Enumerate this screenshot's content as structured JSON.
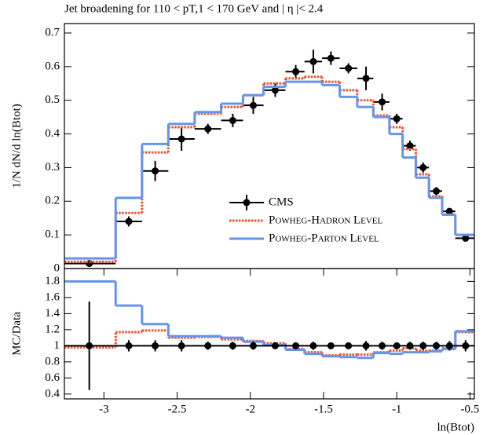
{
  "chart_data": [
    {
      "type": "step",
      "title": "Jet broadening for 110 < pT,1 < 170 GeV and | η |< 2.4",
      "y_label": "1/N dN/d ln(Btot)",
      "bin_edges": [
        -3.27,
        -2.92,
        -2.74,
        -2.56,
        -2.38,
        -2.2,
        -2.05,
        -1.91,
        -1.76,
        -1.63,
        -1.51,
        -1.39,
        -1.27,
        -1.16,
        -1.05,
        -0.96,
        -0.87,
        -0.78,
        -0.69,
        -0.6,
        -0.47
      ],
      "series": [
        {
          "name": "CMS",
          "style": "points",
          "color": "#000000",
          "x": [
            -3.1,
            -2.83,
            -2.65,
            -2.47,
            -2.29,
            -2.12,
            -1.98,
            -1.83,
            -1.69,
            -1.57,
            -1.45,
            -1.33,
            -1.21,
            -1.1,
            -1.0,
            -0.91,
            -0.82,
            -0.73,
            -0.64,
            -0.53
          ],
          "values": [
            0.015,
            0.14,
            0.29,
            0.385,
            0.415,
            0.44,
            0.485,
            0.53,
            0.585,
            0.615,
            0.625,
            0.595,
            0.565,
            0.495,
            0.445,
            0.365,
            0.3,
            0.23,
            0.17,
            0.09
          ],
          "errors": [
            0.01,
            0.015,
            0.03,
            0.035,
            0.015,
            0.02,
            0.025,
            0.02,
            0.02,
            0.035,
            0.02,
            0.015,
            0.035,
            0.025,
            0.015,
            0.015,
            0.015,
            0.012,
            0.01,
            0.008
          ]
        },
        {
          "name": "Powheg-Hadron Level",
          "style": "dotted",
          "color": "#e8512f",
          "values": [
            0.02,
            0.165,
            0.345,
            0.42,
            0.46,
            0.48,
            0.515,
            0.55,
            0.565,
            0.57,
            0.555,
            0.53,
            0.5,
            0.455,
            0.42,
            0.355,
            0.28,
            0.215,
            0.16,
            0.1
          ]
        },
        {
          "name": "Powheg-Parton Level",
          "style": "solid",
          "color": "#6495ed",
          "values": [
            0.03,
            0.21,
            0.37,
            0.43,
            0.465,
            0.49,
            0.515,
            0.54,
            0.555,
            0.555,
            0.545,
            0.51,
            0.48,
            0.45,
            0.4,
            0.33,
            0.27,
            0.21,
            0.16,
            0.1
          ]
        }
      ],
      "xlim": [
        -3.27,
        -0.47
      ],
      "ylim": [
        0,
        0.728
      ],
      "yticks": [
        0,
        0.1,
        0.2,
        0.3,
        0.4,
        0.5,
        0.6,
        0.7
      ]
    },
    {
      "type": "step",
      "y_label": "MC/Data",
      "x_label": "ln(Btot)",
      "bin_edges": [
        -3.27,
        -2.92,
        -2.74,
        -2.56,
        -2.38,
        -2.2,
        -2.05,
        -1.91,
        -1.76,
        -1.63,
        -1.51,
        -1.39,
        -1.27,
        -1.16,
        -1.05,
        -0.96,
        -0.87,
        -0.78,
        -0.69,
        -0.6,
        -0.47
      ],
      "series": [
        {
          "style": "dotted",
          "color": "#e8512f",
          "values": [
            0.98,
            1.17,
            1.19,
            1.1,
            1.11,
            1.08,
            1.06,
            1.03,
            0.96,
            0.92,
            0.88,
            0.89,
            0.89,
            0.92,
            0.94,
            0.97,
            0.94,
            0.94,
            0.97,
            1.17
          ]
        },
        {
          "style": "solid",
          "color": "#6495ed",
          "values": [
            1.8,
            1.5,
            1.27,
            1.12,
            1.12,
            1.1,
            1.05,
            1.01,
            0.95,
            0.9,
            0.87,
            0.86,
            0.85,
            0.91,
            0.9,
            0.92,
            0.92,
            0.93,
            0.96,
            1.18
          ]
        },
        {
          "style": "points",
          "color": "#000000",
          "x": [
            -3.1,
            -2.83,
            -2.65,
            -2.47,
            -2.29,
            -2.12,
            -1.98,
            -1.83,
            -1.69,
            -1.57,
            -1.45,
            -1.33,
            -1.21,
            -1.1,
            -1.0,
            -0.91,
            -0.82,
            -0.73,
            -0.64,
            -0.53
          ],
          "values": [
            1,
            1,
            1,
            1,
            1,
            1,
            1,
            1,
            1,
            1,
            1,
            1,
            1,
            1,
            1,
            1,
            1,
            1,
            1,
            1
          ],
          "errors": [
            0.55,
            0.07,
            0.07,
            0.07,
            0.05,
            0.05,
            0.05,
            0.04,
            0.04,
            0.05,
            0.04,
            0.03,
            0.06,
            0.05,
            0.04,
            0.05,
            0.05,
            0.05,
            0.06,
            0.07
          ]
        }
      ],
      "xlim": [
        -3.27,
        -0.47
      ],
      "xticks": [
        -3,
        -2.5,
        -2,
        -1.5,
        -1,
        -0.5
      ],
      "ylim": [
        0.34,
        1.96
      ],
      "yticks": [
        0.4,
        0.6,
        0.8,
        1,
        1.2,
        1.4,
        1.6,
        1.8
      ]
    }
  ]
}
